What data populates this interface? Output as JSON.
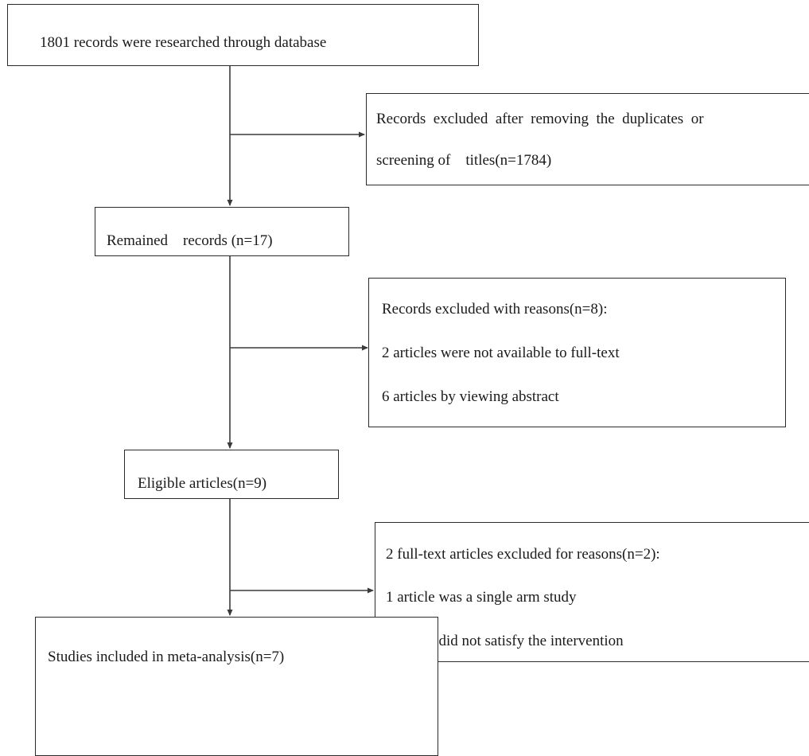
{
  "flow": {
    "step1": {
      "text": "1801 records were researched through database"
    },
    "exclusion1": {
      "line1": "Records  excluded  after  removing  the  duplicates  or",
      "line2": "screening of    titles(n=1784)"
    },
    "step2": {
      "text": "Remained    records (n=17)"
    },
    "exclusion2": {
      "line1": "Records excluded with reasons(n=8):",
      "line2": "2 articles were not available to full-text",
      "line3": "6 articles by viewing abstract"
    },
    "step3": {
      "text": "Eligible articles(n=9)"
    },
    "exclusion3": {
      "line1": "2 full-text articles excluded for reasons(n=2):",
      "line2": "1 article was a single arm study",
      "line3": "1 article did not satisfy the intervention"
    },
    "step4": {
      "text": "Studies included in meta-analysis(n=7)"
    }
  },
  "colors": {
    "line": "#3a3a3a",
    "border": "#2b2b2b",
    "text": "#1a1a1a"
  }
}
